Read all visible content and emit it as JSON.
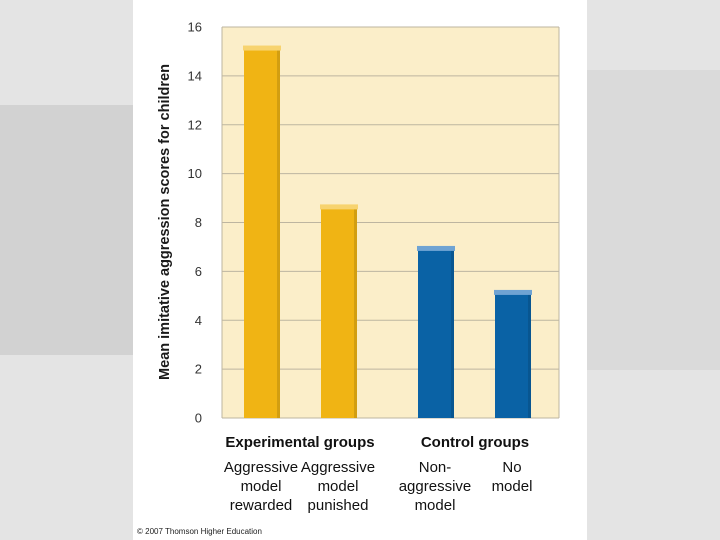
{
  "colors": {
    "plot_bg": "#fbeec9",
    "grid": "#bdb5a0",
    "experimental": "#f0b414",
    "experimental_top": "#f7d36f",
    "control": "#0a62a5",
    "control_top": "#6fa3d3",
    "background": "#e4e4e4"
  },
  "chart_data": {
    "type": "bar",
    "title": "",
    "ylabel": "Mean imitative aggression scores for children",
    "xlabel": "",
    "ylim": [
      0,
      16
    ],
    "yticks": [
      0,
      2,
      4,
      6,
      8,
      10,
      12,
      14,
      16
    ],
    "grid": true,
    "groups": [
      {
        "name": "Experimental groups",
        "categories": [
          {
            "label_lines": [
              "Aggressive",
              "model",
              "rewarded"
            ],
            "value": 15.2
          },
          {
            "label_lines": [
              "Aggressive",
              "model",
              "punished"
            ],
            "value": 8.7
          }
        ]
      },
      {
        "name": "Control groups",
        "categories": [
          {
            "label_lines": [
              "Non-",
              "aggressive",
              "model"
            ],
            "value": 7.0
          },
          {
            "label_lines": [
              "No",
              "model"
            ],
            "value": 5.2
          }
        ]
      }
    ]
  },
  "footer": {
    "copyright": "© 2007 Thomson Higher Education"
  }
}
